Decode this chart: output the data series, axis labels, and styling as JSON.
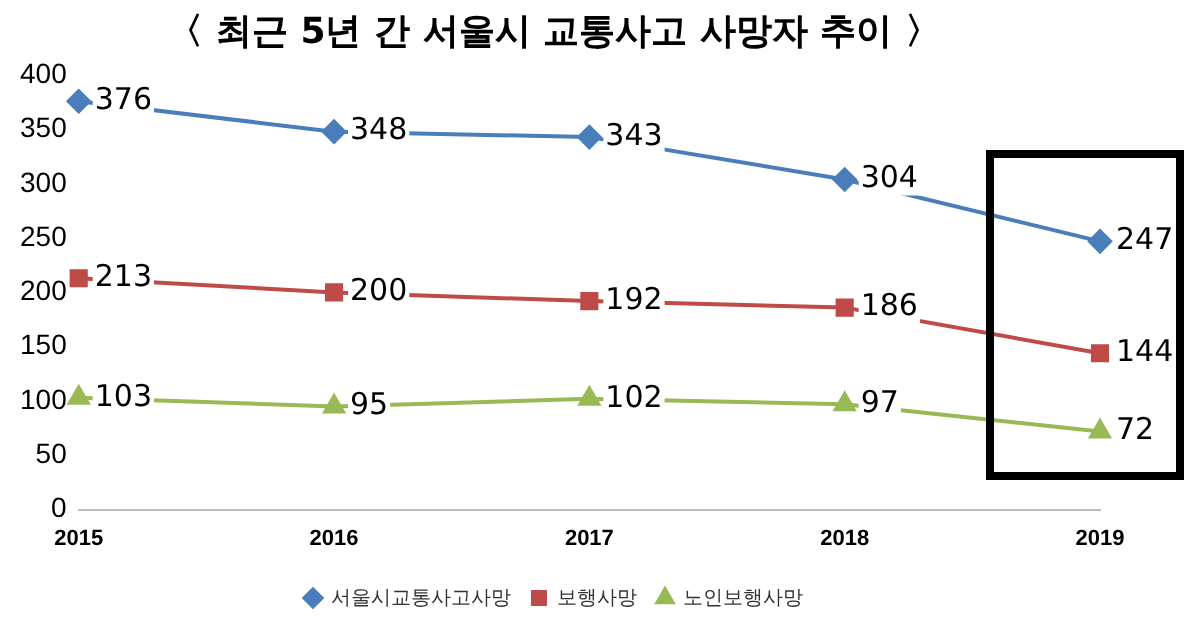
{
  "chart_data": {
    "type": "line",
    "title": "〈 최근 5년 간 서울시 교통사고 사망자 추이 〉",
    "categories": [
      "2015",
      "2016",
      "2017",
      "2018",
      "2019"
    ],
    "series": [
      {
        "name": "서울시교통사고사망",
        "color": "#4a7ebb",
        "values": [
          376,
          348,
          343,
          304,
          247
        ],
        "marker": "diamond"
      },
      {
        "name": "보행사망",
        "color": "#be4b48",
        "values": [
          213,
          200,
          192,
          186,
          144
        ],
        "marker": "square"
      },
      {
        "name": "노인보행사망",
        "color": "#98b954",
        "values": [
          103,
          95,
          102,
          97,
          72
        ],
        "marker": "triangle"
      }
    ],
    "ylim": [
      0,
      400
    ],
    "yticks": [
      0,
      50,
      100,
      150,
      200,
      250,
      300,
      350,
      400
    ],
    "grid": false,
    "legend": "bottom",
    "data_labels": true,
    "line_style": "solid"
  }
}
